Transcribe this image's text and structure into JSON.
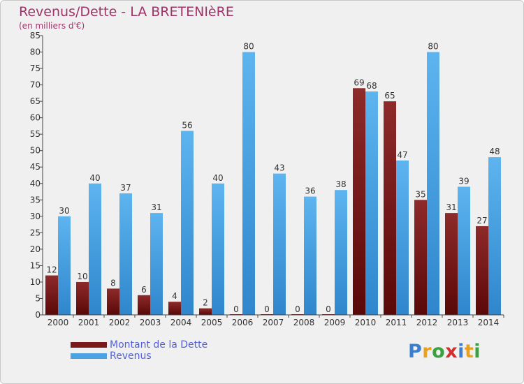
{
  "title": "Revenus/Dette - LA BRETENIèRE",
  "subtitle": "(en milliers d'€)",
  "logo": {
    "chars": [
      "P",
      "r",
      "o",
      "x",
      "i",
      "t",
      "i"
    ],
    "colors": [
      "#3a7fcf",
      "#e8a020",
      "#3aa040",
      "#d03030",
      "#3a7fcf",
      "#e8a020",
      "#3aa040"
    ]
  },
  "colors": {
    "debt": "#7a1a1a",
    "revenue": "#4ba3e3",
    "axis": "#444444",
    "background": "#f0f0f0"
  },
  "chart_data": {
    "type": "bar",
    "categories": [
      "2000",
      "2001",
      "2002",
      "2003",
      "2004",
      "2005",
      "2006",
      "2007",
      "2008",
      "2009",
      "2010",
      "2011",
      "2012",
      "2013",
      "2014"
    ],
    "series": [
      {
        "name": "Montant de la Dette",
        "values": [
          12,
          10,
          8,
          6,
          4,
          2,
          0,
          0,
          0,
          0,
          69,
          65,
          35,
          31,
          27
        ]
      },
      {
        "name": "Revenus",
        "values": [
          30,
          40,
          37,
          31,
          56,
          40,
          80,
          43,
          36,
          38,
          68,
          47,
          80,
          39,
          48
        ]
      }
    ],
    "ylim": [
      0,
      85
    ],
    "yticks": [
      0,
      5,
      10,
      15,
      20,
      25,
      30,
      35,
      40,
      45,
      50,
      55,
      60,
      65,
      70,
      75,
      80,
      85
    ],
    "grid": false,
    "legend": "bottom-left"
  }
}
